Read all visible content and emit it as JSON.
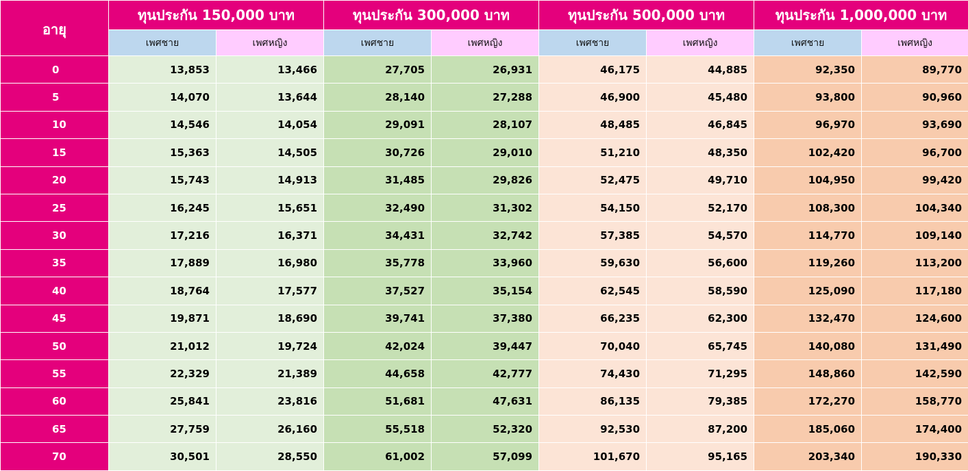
{
  "colors": {
    "accent": "#e4007c",
    "male_sub": "#bdd7ee",
    "female_sub": "#ffccff",
    "group1": "#e2efda",
    "group2": "#c6e0b4",
    "group3": "#fce4d6",
    "group4": "#f8cbad"
  },
  "header": {
    "age_label": "อายุ",
    "male_label": "เพศชาย",
    "female_label": "เพศหญิง",
    "groups": [
      "ทุนประกัน 150,000 บาท",
      "ทุนประกัน 300,000 บาท",
      "ทุนประกัน 500,000 บาท",
      "ทุนประกัน 1,000,000 บาท"
    ]
  },
  "rows": [
    {
      "age": "0",
      "values": [
        "13,853",
        "13,466",
        "27,705",
        "26,931",
        "46,175",
        "44,885",
        "92,350",
        "89,770"
      ]
    },
    {
      "age": "5",
      "values": [
        "14,070",
        "13,644",
        "28,140",
        "27,288",
        "46,900",
        "45,480",
        "93,800",
        "90,960"
      ]
    },
    {
      "age": "10",
      "values": [
        "14,546",
        "14,054",
        "29,091",
        "28,107",
        "48,485",
        "46,845",
        "96,970",
        "93,690"
      ]
    },
    {
      "age": "15",
      "values": [
        "15,363",
        "14,505",
        "30,726",
        "29,010",
        "51,210",
        "48,350",
        "102,420",
        "96,700"
      ]
    },
    {
      "age": "20",
      "values": [
        "15,743",
        "14,913",
        "31,485",
        "29,826",
        "52,475",
        "49,710",
        "104,950",
        "99,420"
      ]
    },
    {
      "age": "25",
      "values": [
        "16,245",
        "15,651",
        "32,490",
        "31,302",
        "54,150",
        "52,170",
        "108,300",
        "104,340"
      ]
    },
    {
      "age": "30",
      "values": [
        "17,216",
        "16,371",
        "34,431",
        "32,742",
        "57,385",
        "54,570",
        "114,770",
        "109,140"
      ]
    },
    {
      "age": "35",
      "values": [
        "17,889",
        "16,980",
        "35,778",
        "33,960",
        "59,630",
        "56,600",
        "119,260",
        "113,200"
      ]
    },
    {
      "age": "40",
      "values": [
        "18,764",
        "17,577",
        "37,527",
        "35,154",
        "62,545",
        "58,590",
        "125,090",
        "117,180"
      ]
    },
    {
      "age": "45",
      "values": [
        "19,871",
        "18,690",
        "39,741",
        "37,380",
        "66,235",
        "62,300",
        "132,470",
        "124,600"
      ]
    },
    {
      "age": "50",
      "values": [
        "21,012",
        "19,724",
        "42,024",
        "39,447",
        "70,040",
        "65,745",
        "140,080",
        "131,490"
      ]
    },
    {
      "age": "55",
      "values": [
        "22,329",
        "21,389",
        "44,658",
        "42,777",
        "74,430",
        "71,295",
        "148,860",
        "142,590"
      ]
    },
    {
      "age": "60",
      "values": [
        "25,841",
        "23,816",
        "51,681",
        "47,631",
        "86,135",
        "79,385",
        "172,270",
        "158,770"
      ]
    },
    {
      "age": "65",
      "values": [
        "27,759",
        "26,160",
        "55,518",
        "52,320",
        "92,530",
        "87,200",
        "185,060",
        "174,400"
      ]
    },
    {
      "age": "70",
      "values": [
        "30,501",
        "28,550",
        "61,002",
        "57,099",
        "101,670",
        "95,165",
        "203,340",
        "190,330"
      ]
    }
  ]
}
